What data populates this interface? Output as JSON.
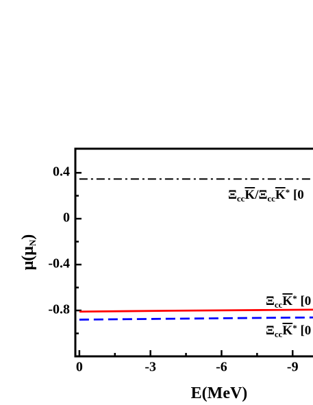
{
  "chart_data": {
    "type": "line",
    "x_label": [
      {
        "text": "E(MeV)"
      }
    ],
    "y_label": [
      {
        "text": "μ(μ"
      },
      {
        "text": "N",
        "sub": true
      },
      {
        "text": ")"
      }
    ],
    "xlim": [
      0.17,
      -9.86
    ],
    "ylim": [
      -1.2,
      0.61
    ],
    "xticks": [
      0,
      -3,
      -6,
      -9
    ],
    "yticks": [
      0.4,
      0.0,
      -0.4,
      -0.8
    ],
    "yminor": [
      0.2,
      -0.2,
      -0.6,
      -1.0
    ],
    "xminor": [
      -1.5,
      -4.5,
      -7.5
    ],
    "x": [
      0,
      -2,
      -4,
      -6,
      -8,
      -9.86
    ],
    "series": [
      {
        "color": "#000000",
        "dash": "dashdot",
        "values": [
          0.346,
          0.346,
          0.346,
          0.346,
          0.346,
          0.346
        ]
      },
      {
        "color": "#ff0000",
        "dash": "solid",
        "values": [
          -0.81,
          -0.806,
          -0.802,
          -0.799,
          -0.796,
          -0.793
        ]
      },
      {
        "color": "#0000ff",
        "dash": "dashed",
        "values": [
          -0.88,
          -0.876,
          -0.872,
          -0.868,
          -0.864,
          -0.861
        ]
      }
    ],
    "annotations": [
      {
        "parts": [
          {
            "text": "Ξ"
          },
          {
            "text": "cc",
            "sub": true
          },
          {
            "text": "K",
            "bar": true
          },
          {
            "text": "/Ξ"
          },
          {
            "text": "cc",
            "sub": true
          },
          {
            "text": "K",
            "bar": true
          },
          {
            "text": "*",
            "sup": true
          },
          {
            "text": " [0"
          }
        ]
      },
      {
        "parts": [
          {
            "text": "Ξ"
          },
          {
            "text": "cc",
            "sub": true
          },
          {
            "text": "K",
            "bar": true
          },
          {
            "text": "*",
            "sup": true
          },
          {
            "text": " [0"
          }
        ]
      },
      {
        "parts": [
          {
            "text": "Ξ"
          },
          {
            "text": "cc",
            "sub": true
          },
          {
            "text": "K",
            "bar": true
          },
          {
            "text": "*",
            "sup": true
          },
          {
            "text": " [0"
          }
        ]
      }
    ]
  }
}
